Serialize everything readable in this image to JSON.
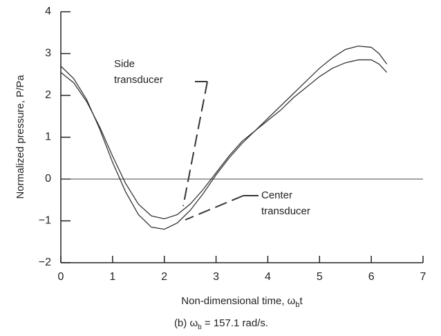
{
  "chart_data": {
    "type": "line",
    "ylabel": "Normalized pressure, P/Pa",
    "xlabel": {
      "text": "Non-dimensional time, ω",
      "sub": "b",
      "tail": "t"
    },
    "caption": {
      "text": "(b) ω",
      "sub": "b",
      "tail": " = 157.1 rad/s."
    },
    "x": [
      0,
      0.25,
      0.5,
      0.75,
      1,
      1.25,
      1.5,
      1.75,
      2,
      2.25,
      2.5,
      2.75,
      3,
      3.25,
      3.5,
      3.75,
      4,
      4.25,
      4.5,
      4.75,
      5,
      5.25,
      5.5,
      5.75,
      6,
      6.15,
      6.3
    ],
    "series": [
      {
        "name": "Side transducer",
        "color": "#333333",
        "values": [
          2.55,
          2.3,
          1.85,
          1.25,
          0.55,
          -0.1,
          -0.6,
          -0.88,
          -0.95,
          -0.85,
          -0.6,
          -0.25,
          0.15,
          0.55,
          0.9,
          1.15,
          1.4,
          1.65,
          1.95,
          2.2,
          2.45,
          2.65,
          2.78,
          2.85,
          2.85,
          2.75,
          2.55
        ]
      },
      {
        "name": "Center transducer",
        "color": "#333333",
        "values": [
          2.7,
          2.4,
          1.9,
          1.2,
          0.4,
          -0.3,
          -0.85,
          -1.15,
          -1.2,
          -1.05,
          -0.75,
          -0.35,
          0.1,
          0.5,
          0.85,
          1.15,
          1.45,
          1.75,
          2.05,
          2.35,
          2.65,
          2.9,
          3.1,
          3.18,
          3.15,
          3.0,
          2.75
        ]
      }
    ],
    "annotations": [
      {
        "lines": [
          "Side",
          "transducer"
        ]
      },
      {
        "lines": [
          "Center",
          "transducer"
        ]
      }
    ],
    "xlim": [
      0,
      7
    ],
    "xticks": [
      0,
      1,
      2,
      3,
      4,
      5,
      6,
      7
    ],
    "ylim": [
      -2,
      4
    ],
    "yticks": [
      {
        "value": -2,
        "label": "−2"
      },
      {
        "value": -1,
        "label": "−1"
      },
      0,
      1,
      2,
      3,
      4
    ],
    "zero_line": true
  }
}
